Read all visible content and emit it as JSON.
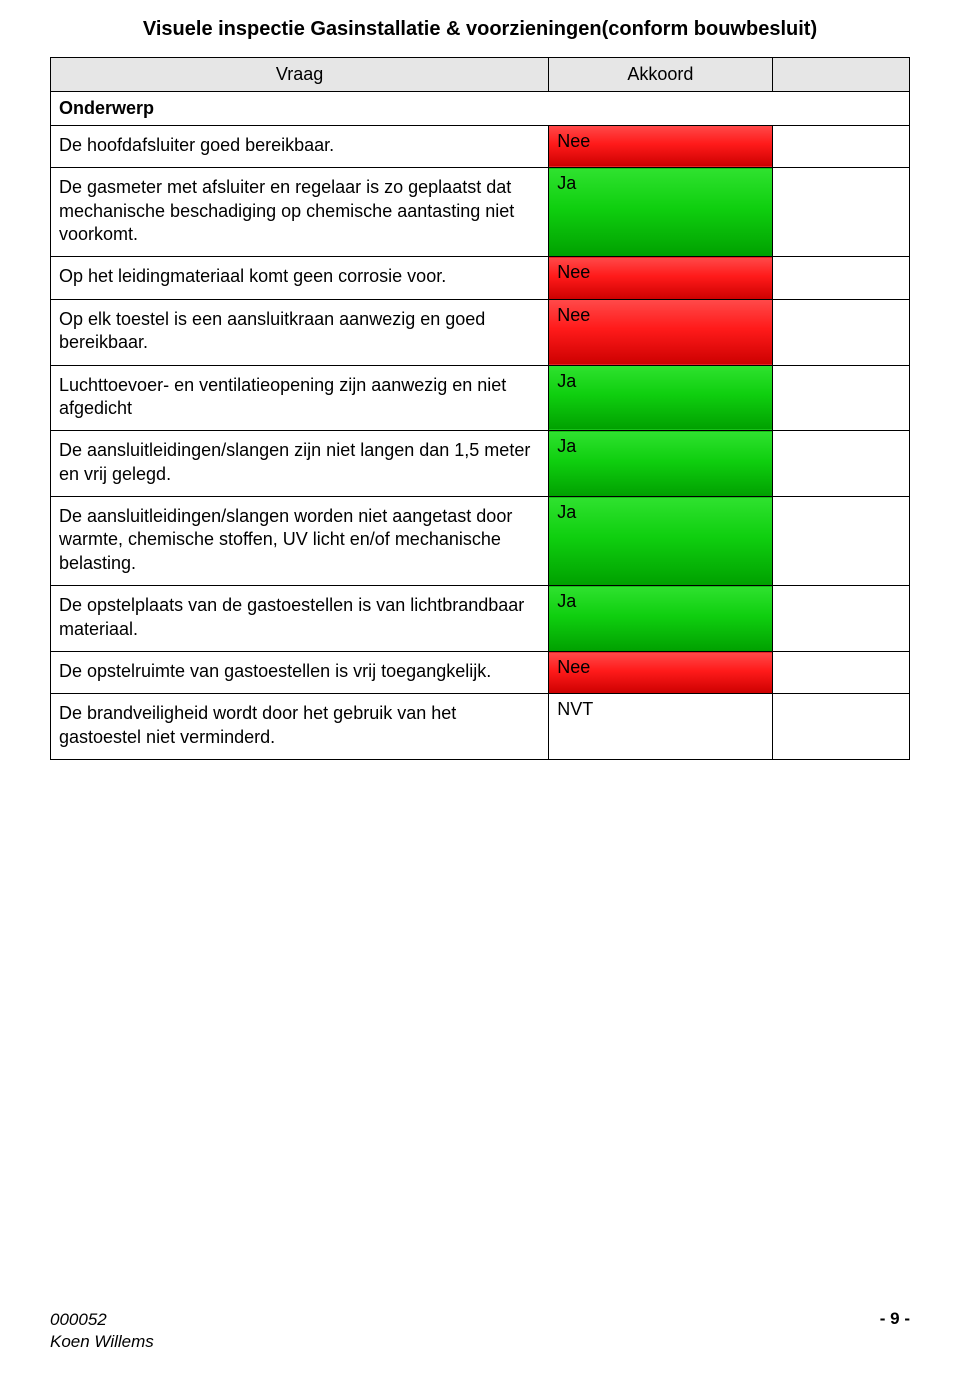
{
  "title": "Visuele inspectie Gasinstallatie & voorzieningen(conform bouwbesluit)",
  "header": {
    "vraag": "Vraag",
    "akkoord": "Akkoord"
  },
  "subject_label": "Onderwerp",
  "colors": {
    "nee_top": "#ff4a4a",
    "nee_bot": "#cc0000",
    "ja_top": "#2fe22f",
    "ja_bot": "#00a000",
    "header_bg": "#e6e6e6",
    "border": "#000000",
    "text": "#000000"
  },
  "rows": [
    {
      "q": "De hoofdafsluiter goed bereikbaar.",
      "status": "Nee",
      "style": "nee"
    },
    {
      "q": "De gasmeter met afsluiter en regelaar is zo geplaatst dat mechanische beschadiging op chemische aantasting niet voorkomt.",
      "status": "Ja",
      "style": "ja"
    },
    {
      "q": "Op het leidingmateriaal komt geen corrosie voor.",
      "status": "Nee",
      "style": "nee"
    },
    {
      "q": "Op elk toestel is een aansluitkraan aanwezig en goed bereikbaar.",
      "status": "Nee",
      "style": "nee"
    },
    {
      "q": "Luchttoevoer- en ventilatieopening zijn aanwezig en niet afgedicht",
      "status": "Ja",
      "style": "ja"
    },
    {
      "q": "De aansluitleidingen/slangen zijn niet langen dan 1,5 meter en vrij gelegd.",
      "status": "Ja",
      "style": "ja"
    },
    {
      "q": "De aansluitleidingen/slangen worden niet aangetast door warmte, chemische stoffen, UV licht en/of mechanische belasting.",
      "status": "Ja",
      "style": "ja"
    },
    {
      "q": "De opstelplaats van de gastoestellen is van lichtbrandbaar materiaal.",
      "status": "Ja",
      "style": "ja"
    },
    {
      "q": "De opstelruimte van gastoestellen is vrij toegangkelijk.",
      "status": "Nee",
      "style": "nee"
    },
    {
      "q": "De brandveiligheid wordt door het gebruik van het gastoestel niet verminderd.",
      "status": "NVT",
      "style": "nvt"
    }
  ],
  "footer": {
    "doc_id": "000052",
    "author": "Koen Willems",
    "page_num": "- 9 -"
  }
}
